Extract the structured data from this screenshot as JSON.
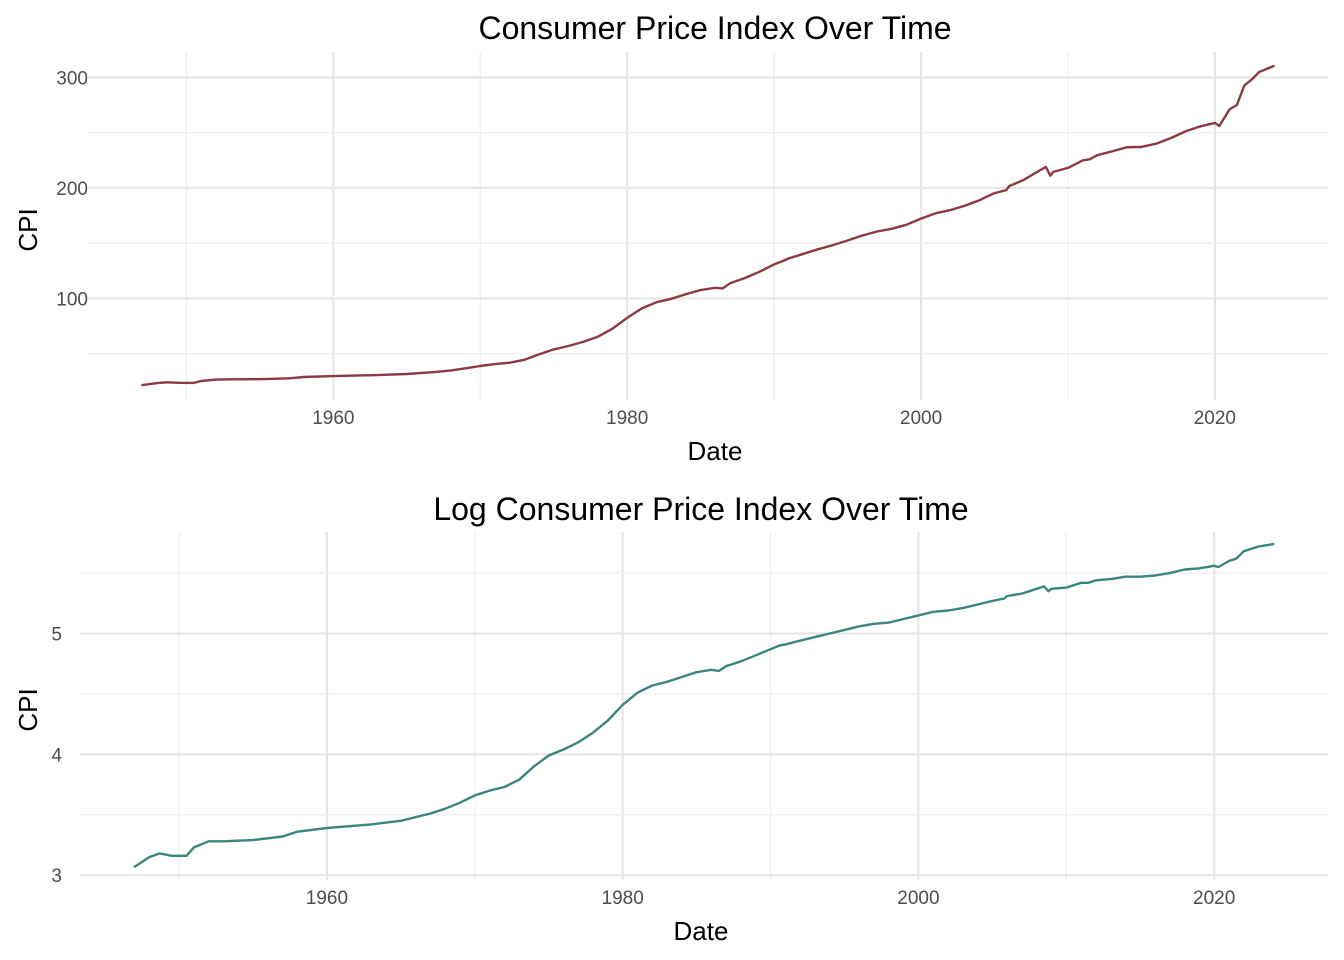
{
  "chart_data": [
    {
      "type": "line",
      "title": "Consumer Price Index Over Time",
      "xlabel": "Date",
      "ylabel": "CPI",
      "xlim": [
        1943.3,
        2027.7
      ],
      "ylim": [
        8,
        323
      ],
      "xticks": [
        1960,
        1980,
        2000,
        2020
      ],
      "yticks": [
        100,
        200,
        300
      ],
      "grid": true,
      "legend": "none",
      "color": "#8B3A42",
      "series": [
        {
          "x": [
            1947.0,
            1948.0,
            1948.7,
            1949.5,
            1950.5,
            1951.0,
            1952.0,
            1953.0,
            1955.0,
            1957.0,
            1958.0,
            1960.0,
            1963.0,
            1965.0,
            1967.0,
            1968.0,
            1969.0,
            1970.0,
            1971.0,
            1972.0,
            1973.0,
            1974.0,
            1975.0,
            1976.0,
            1977.0,
            1978.0,
            1979.0,
            1980.0,
            1981.0,
            1982.0,
            1983.0,
            1984.0,
            1985.0,
            1986.0,
            1986.5,
            1987.0,
            1988.0,
            1989.0,
            1990.0,
            1990.6,
            1991.0,
            1992.0,
            1993.0,
            1994.0,
            1995.0,
            1996.0,
            1997.0,
            1998.0,
            1999.0,
            2000.0,
            2001.0,
            2002.0,
            2003.0,
            2004.0,
            2005.0,
            2005.8,
            2006.0,
            2007.0,
            2008.0,
            2008.5,
            2008.8,
            2009.0,
            2010.0,
            2011.0,
            2011.5,
            2012.0,
            2013.0,
            2014.0,
            2014.6,
            2015.0,
            2016.0,
            2017.0,
            2018.0,
            2019.0,
            2020.0,
            2020.3,
            2021.0,
            2021.5,
            2022.0,
            2022.5,
            2023.0,
            2024.0
          ],
          "y": [
            21.5,
            23.3,
            24.0,
            23.6,
            23.5,
            25.2,
            26.5,
            26.7,
            26.8,
            27.6,
            28.8,
            29.6,
            30.5,
            31.5,
            33.4,
            34.8,
            36.7,
            38.8,
            40.5,
            41.8,
            44.4,
            49.3,
            53.8,
            56.9,
            60.6,
            65.2,
            72.6,
            82.4,
            90.9,
            96.5,
            99.6,
            103.9,
            107.6,
            109.6,
            109.0,
            113.6,
            118.3,
            124.0,
            130.7,
            133.8,
            136.2,
            140.3,
            144.5,
            148.2,
            152.4,
            156.9,
            160.5,
            163.0,
            166.6,
            172.2,
            177.1,
            179.9,
            184.0,
            188.9,
            195.3,
            198.0,
            201.6,
            207.3,
            215.3,
            219.0,
            211.0,
            214.5,
            218.1,
            224.9,
            226.0,
            229.6,
            233.0,
            236.7,
            237.0,
            237.0,
            240.0,
            245.1,
            251.1,
            255.7,
            258.8,
            256.0,
            271.0,
            275.0,
            292.7,
            298.0,
            304.7,
            310.3
          ]
        }
      ]
    },
    {
      "type": "line",
      "title": "Log Consumer Price Index Over Time",
      "xlabel": "Date",
      "ylabel": "CPI",
      "xlim": [
        1943.3,
        2027.7
      ],
      "ylim": [
        2.96,
        5.84
      ],
      "xticks": [
        1960,
        1980,
        2000,
        2020
      ],
      "yticks": [
        3,
        4,
        5
      ],
      "grid": true,
      "legend": "none",
      "color": "#3B8580",
      "series": [
        {
          "x": [
            1947.0,
            1948.0,
            1948.7,
            1949.5,
            1950.5,
            1951.0,
            1952.0,
            1953.0,
            1955.0,
            1957.0,
            1958.0,
            1960.0,
            1963.0,
            1965.0,
            1967.0,
            1968.0,
            1969.0,
            1970.0,
            1971.0,
            1972.0,
            1973.0,
            1974.0,
            1975.0,
            1976.0,
            1977.0,
            1978.0,
            1979.0,
            1980.0,
            1981.0,
            1982.0,
            1983.0,
            1984.0,
            1985.0,
            1986.0,
            1986.5,
            1987.0,
            1988.0,
            1989.0,
            1990.0,
            1990.6,
            1991.0,
            1992.0,
            1993.0,
            1994.0,
            1995.0,
            1996.0,
            1997.0,
            1998.0,
            1999.0,
            2000.0,
            2001.0,
            2002.0,
            2003.0,
            2004.0,
            2005.0,
            2005.8,
            2006.0,
            2007.0,
            2008.0,
            2008.5,
            2008.8,
            2009.0,
            2010.0,
            2011.0,
            2011.5,
            2012.0,
            2013.0,
            2014.0,
            2014.6,
            2015.0,
            2016.0,
            2017.0,
            2018.0,
            2019.0,
            2020.0,
            2020.3,
            2021.0,
            2021.5,
            2022.0,
            2022.5,
            2023.0,
            2024.0
          ],
          "y": [
            3.07,
            3.15,
            3.18,
            3.16,
            3.16,
            3.23,
            3.28,
            3.28,
            3.29,
            3.32,
            3.36,
            3.39,
            3.42,
            3.45,
            3.51,
            3.55,
            3.6,
            3.66,
            3.7,
            3.73,
            3.79,
            3.9,
            3.99,
            4.04,
            4.1,
            4.18,
            4.28,
            4.41,
            4.51,
            4.57,
            4.6,
            4.64,
            4.68,
            4.7,
            4.69,
            4.73,
            4.77,
            4.82,
            4.87,
            4.9,
            4.91,
            4.94,
            4.97,
            5.0,
            5.03,
            5.06,
            5.08,
            5.09,
            5.12,
            5.15,
            5.18,
            5.19,
            5.21,
            5.24,
            5.27,
            5.29,
            5.31,
            5.33,
            5.37,
            5.39,
            5.35,
            5.37,
            5.38,
            5.42,
            5.42,
            5.44,
            5.45,
            5.47,
            5.47,
            5.47,
            5.48,
            5.5,
            5.53,
            5.54,
            5.56,
            5.55,
            5.6,
            5.62,
            5.68,
            5.7,
            5.72,
            5.74
          ]
        }
      ]
    }
  ]
}
